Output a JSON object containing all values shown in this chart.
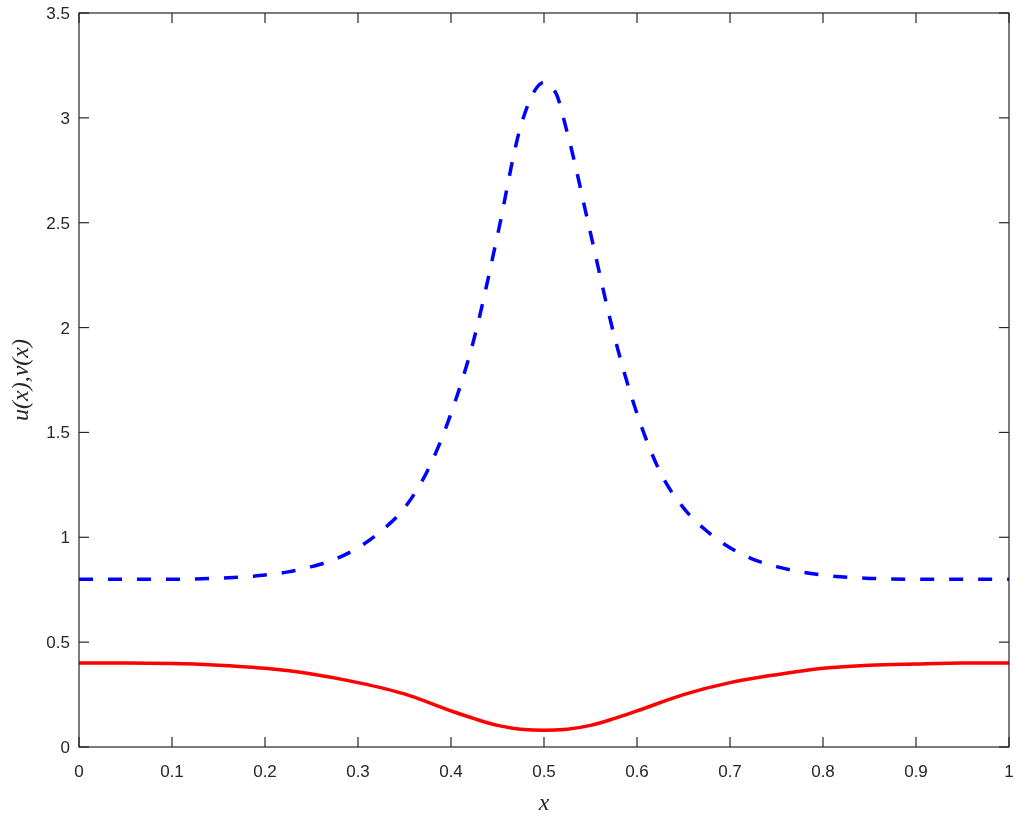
{
  "chart_data": {
    "type": "line",
    "xlabel": "x",
    "ylabel": "u(x),v(x)",
    "xlim": [
      0,
      1
    ],
    "ylim": [
      0,
      3.5
    ],
    "xticks": [
      0,
      0.1,
      0.2,
      0.3,
      0.4,
      0.5,
      0.6,
      0.7,
      0.8,
      0.9,
      1
    ],
    "yticks": [
      0,
      0.5,
      1,
      1.5,
      2,
      2.5,
      3,
      3.5
    ],
    "series": [
      {
        "color": "#0000ff",
        "line_style": "dashed",
        "x": [
          0,
          0.05,
          0.1,
          0.15,
          0.2,
          0.225,
          0.25,
          0.275,
          0.3,
          0.325,
          0.35,
          0.375,
          0.4,
          0.425,
          0.45,
          0.475,
          0.4875,
          0.5,
          0.5125,
          0.525,
          0.55,
          0.575,
          0.6,
          0.625,
          0.65,
          0.675,
          0.7,
          0.725,
          0.75,
          0.775,
          0.8,
          0.85,
          0.9,
          0.95,
          1
        ],
        "values": [
          0.8,
          0.8,
          0.8,
          0.805,
          0.82,
          0.835,
          0.86,
          0.895,
          0.95,
          1.03,
          1.14,
          1.32,
          1.59,
          1.95,
          2.44,
          2.96,
          3.11,
          3.17,
          3.12,
          2.93,
          2.45,
          1.97,
          1.59,
          1.31,
          1.14,
          1.03,
          0.95,
          0.895,
          0.86,
          0.836,
          0.82,
          0.804,
          0.8,
          0.8,
          0.8
        ]
      },
      {
        "color": "#ff0000",
        "line_style": "solid",
        "x": [
          0,
          0.05,
          0.1,
          0.15,
          0.2,
          0.25,
          0.3,
          0.35,
          0.4,
          0.425,
          0.45,
          0.475,
          0.5,
          0.525,
          0.55,
          0.575,
          0.6,
          0.65,
          0.7,
          0.75,
          0.8,
          0.85,
          0.9,
          0.95,
          1
        ],
        "values": [
          0.4,
          0.4,
          0.398,
          0.39,
          0.375,
          0.348,
          0.307,
          0.253,
          0.172,
          0.135,
          0.103,
          0.085,
          0.08,
          0.085,
          0.103,
          0.135,
          0.172,
          0.25,
          0.307,
          0.345,
          0.375,
          0.39,
          0.396,
          0.4,
          0.4
        ]
      }
    ]
  }
}
